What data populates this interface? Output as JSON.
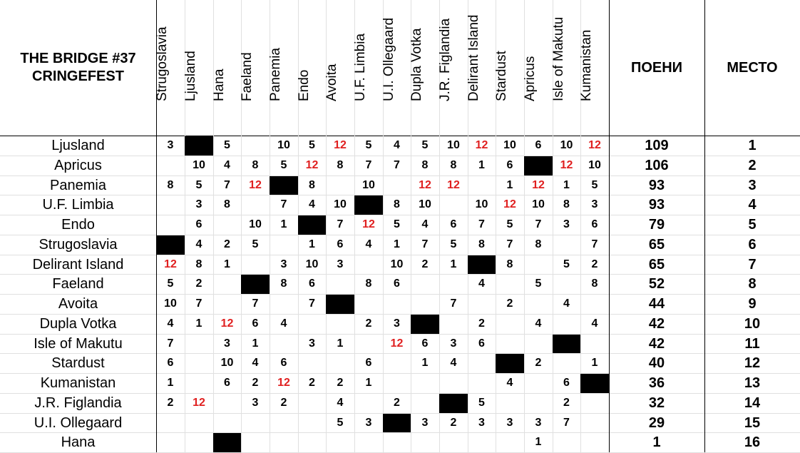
{
  "title_lines": [
    "THE BRIDGE #37",
    "CRINGEFEST"
  ],
  "columns": [
    "Strugoslavia",
    "Ljusland",
    "Hana",
    "Faeland",
    "Panemia",
    "Endo",
    "Avoita",
    "U.F. Limbia",
    "U.I. Ollegaard",
    "Dupla Votka",
    "J.R. Figlandia",
    "Delirant Island",
    "Stardust",
    "Apricus",
    "Isle of Makutu",
    "Kumanistan"
  ],
  "points_header": "ПОЕНИ",
  "place_header": "МЕСТО",
  "highlight_color": "#e02020",
  "blocked_cell_color": "#000000",
  "rows": [
    {
      "country": "Ljusland",
      "scores": [
        "3",
        "",
        "5",
        "",
        "10",
        "5",
        "12",
        "5",
        "4",
        "5",
        "10",
        "12",
        "10",
        "6",
        "10",
        "12"
      ],
      "blocked": 1,
      "points": "109",
      "place": "1"
    },
    {
      "country": "Apricus",
      "scores": [
        "",
        "10",
        "4",
        "8",
        "5",
        "12",
        "8",
        "7",
        "7",
        "8",
        "8",
        "1",
        "6",
        "",
        "12",
        "10"
      ],
      "blocked": 13,
      "points": "106",
      "place": "2"
    },
    {
      "country": "Panemia",
      "scores": [
        "8",
        "5",
        "7",
        "12",
        "",
        "8",
        "",
        "10",
        "",
        "12",
        "12",
        "",
        "1",
        "12",
        "1",
        "5"
      ],
      "blocked": 4,
      "points": "93",
      "place": "3"
    },
    {
      "country": "U.F. Limbia",
      "scores": [
        "",
        "3",
        "8",
        "",
        "7",
        "4",
        "10",
        "",
        "8",
        "10",
        "",
        "10",
        "12",
        "10",
        "8",
        "3"
      ],
      "blocked": 7,
      "points": "93",
      "place": "4"
    },
    {
      "country": "Endo",
      "scores": [
        "",
        "6",
        "",
        "10",
        "1",
        "",
        "7",
        "12",
        "5",
        "4",
        "6",
        "7",
        "5",
        "7",
        "3",
        "6"
      ],
      "blocked": 5,
      "points": "79",
      "place": "5"
    },
    {
      "country": "Strugoslavia",
      "scores": [
        "",
        "4",
        "2",
        "5",
        "",
        "1",
        "6",
        "4",
        "1",
        "7",
        "5",
        "8",
        "7",
        "8",
        "",
        "7"
      ],
      "blocked": 0,
      "points": "65",
      "place": "6"
    },
    {
      "country": "Delirant Island",
      "scores": [
        "12",
        "8",
        "1",
        "",
        "3",
        "10",
        "3",
        "",
        "10",
        "2",
        "1",
        "",
        "8",
        "",
        "5",
        "2"
      ],
      "blocked": 11,
      "points": "65",
      "place": "7"
    },
    {
      "country": "Faeland",
      "scores": [
        "5",
        "2",
        "",
        "",
        "8",
        "6",
        "",
        "8",
        "6",
        "",
        "",
        "4",
        "",
        "5",
        "",
        "8"
      ],
      "blocked": 3,
      "points": "52",
      "place": "8"
    },
    {
      "country": "Avoita",
      "scores": [
        "10",
        "7",
        "",
        "7",
        "",
        "7",
        "",
        "",
        "",
        "",
        "7",
        "",
        "2",
        "",
        "4",
        ""
      ],
      "blocked": 6,
      "points": "44",
      "place": "9"
    },
    {
      "country": "Dupla Votka",
      "scores": [
        "4",
        "1",
        "12",
        "6",
        "4",
        "",
        "",
        "2",
        "3",
        "",
        "",
        "2",
        "",
        "4",
        "",
        "4"
      ],
      "blocked": 9,
      "points": "42",
      "place": "10"
    },
    {
      "country": "Isle of Makutu",
      "scores": [
        "7",
        "",
        "3",
        "1",
        "",
        "3",
        "1",
        "",
        "12",
        "6",
        "3",
        "6",
        "",
        "",
        "",
        ""
      ],
      "blocked": 14,
      "points": "42",
      "place": "11"
    },
    {
      "country": "Stardust",
      "scores": [
        "6",
        "",
        "10",
        "4",
        "6",
        "",
        "",
        "6",
        "",
        "1",
        "4",
        "",
        "",
        "2",
        "",
        "1"
      ],
      "blocked": 12,
      "points": "40",
      "place": "12"
    },
    {
      "country": "Kumanistan",
      "scores": [
        "1",
        "",
        "6",
        "2",
        "12",
        "2",
        "2",
        "1",
        "",
        "",
        "",
        "",
        "4",
        "",
        "6",
        ""
      ],
      "blocked": 15,
      "points": "36",
      "place": "13"
    },
    {
      "country": "J.R. Figlandia",
      "scores": [
        "2",
        "12",
        "",
        "3",
        "2",
        "",
        "4",
        "",
        "2",
        "",
        "",
        "5",
        "",
        "",
        "2",
        ""
      ],
      "blocked": 10,
      "points": "32",
      "place": "14"
    },
    {
      "country": "U.I. Ollegaard",
      "scores": [
        "",
        "",
        "",
        "",
        "",
        "",
        "5",
        "3",
        "",
        "3",
        "2",
        "3",
        "3",
        "3",
        "7",
        ""
      ],
      "blocked": 8,
      "points": "29",
      "place": "15"
    },
    {
      "country": "Hana",
      "scores": [
        "",
        "",
        "",
        "",
        "",
        "",
        "",
        "",
        "",
        "",
        "",
        "",
        "",
        "1",
        "",
        ""
      ],
      "blocked": 2,
      "points": "1",
      "place": "16"
    }
  ]
}
